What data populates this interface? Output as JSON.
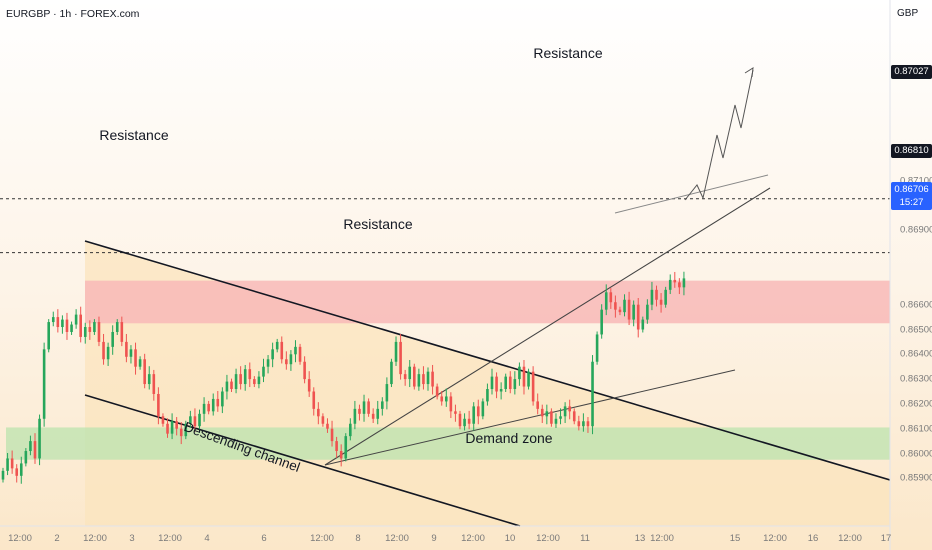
{
  "header": {
    "symbol": "EURGBP · 1h · FOREX.com",
    "currency": "GBP"
  },
  "colors": {
    "up": "#26a65b",
    "down": "#ef5350",
    "resistance_zone": "#f8b9b7",
    "demand_zone": "#bfe3b0",
    "channel_fill": "#fbe4bd",
    "price_badge": "#2962ff"
  },
  "price_badge": {
    "price": "0.86706",
    "countdown": "15:27"
  },
  "chart_data": {
    "type": "candlestick",
    "symbol": "EURGBP",
    "timeframe": "1h",
    "x_tick_labels": [
      "12:00",
      "2",
      "12:00",
      "3",
      "12:00",
      "4",
      "6",
      "12:00",
      "8",
      "12:00",
      "9",
      "12:00",
      "10",
      "12:00",
      "11",
      "13",
      "12:00",
      "15",
      "12:00",
      "16",
      "12:00",
      "17"
    ],
    "y_tick_labels": [
      "0.87100",
      "0.87000",
      "0.86900",
      "0.86600",
      "0.86500",
      "0.86400",
      "0.86300",
      "0.86200",
      "0.86100",
      "0.86000",
      "0.85900"
    ],
    "y_range": [
      0.8584,
      0.8722
    ],
    "horizontal_levels": [
      {
        "label": "Resistance",
        "price": 0.87027,
        "display": "0.87027"
      },
      {
        "label": "Resistance",
        "price": 0.8681,
        "display": "0.86810"
      }
    ],
    "zones": [
      {
        "label": "Resistance",
        "top": 0.86697,
        "bottom": 0.86525
      },
      {
        "label": "Demand zone",
        "top": 0.86105,
        "bottom": 0.85975
      }
    ],
    "channel_label": "Descending channel",
    "annotations": [
      "Resistance",
      "Resistance",
      "Resistance",
      "Demand zone",
      "Descending channel"
    ],
    "last_price": 0.86706,
    "candles_close": [
      0.8593,
      0.8598,
      0.8594,
      0.8591,
      0.8596,
      0.8601,
      0.8605,
      0.8598,
      0.8614,
      0.8642,
      0.8653,
      0.8655,
      0.8651,
      0.8654,
      0.8649,
      0.8652,
      0.8656,
      0.8647,
      0.8651,
      0.8649,
      0.8653,
      0.8645,
      0.8638,
      0.8643,
      0.8649,
      0.8653,
      0.8645,
      0.8639,
      0.8642,
      0.8635,
      0.8638,
      0.8628,
      0.8632,
      0.8624,
      0.8615,
      0.8612,
      0.8608,
      0.8613,
      0.861,
      0.8607,
      0.8612,
      0.8615,
      0.8611,
      0.8616,
      0.862,
      0.8617,
      0.8622,
      0.8619,
      0.8625,
      0.8629,
      0.8626,
      0.8632,
      0.8628,
      0.8634,
      0.863,
      0.8628,
      0.8631,
      0.8635,
      0.8638,
      0.8642,
      0.8645,
      0.8638,
      0.8636,
      0.864,
      0.8643,
      0.8637,
      0.863,
      0.8625,
      0.8618,
      0.8615,
      0.8612,
      0.861,
      0.8605,
      0.8601,
      0.8598,
      0.8607,
      0.8612,
      0.8618,
      0.8616,
      0.8621,
      0.8616,
      0.8614,
      0.8618,
      0.8621,
      0.8628,
      0.8637,
      0.8645,
      0.8632,
      0.863,
      0.8635,
      0.8627,
      0.8632,
      0.8628,
      0.8633,
      0.8627,
      0.8623,
      0.8621,
      0.8623,
      0.8617,
      0.8616,
      0.8611,
      0.8614,
      0.8612,
      0.8619,
      0.8615,
      0.8621,
      0.8626,
      0.8631,
      0.8625,
      0.8626,
      0.8631,
      0.8626,
      0.863,
      0.8635,
      0.8627,
      0.8633,
      0.8621,
      0.8618,
      0.8615,
      0.8617,
      0.8612,
      0.8614,
      0.8615,
      0.8619,
      0.8617,
      0.8613,
      0.8611,
      0.8613,
      0.8611,
      0.8637,
      0.8648,
      0.8658,
      0.8665,
      0.8661,
      0.8658,
      0.8657,
      0.8662,
      0.8654,
      0.866,
      0.865,
      0.8654,
      0.866,
      0.8666,
      0.8662,
      0.866,
      0.8666,
      0.867,
      0.8669,
      0.8667,
      0.86706
    ]
  }
}
